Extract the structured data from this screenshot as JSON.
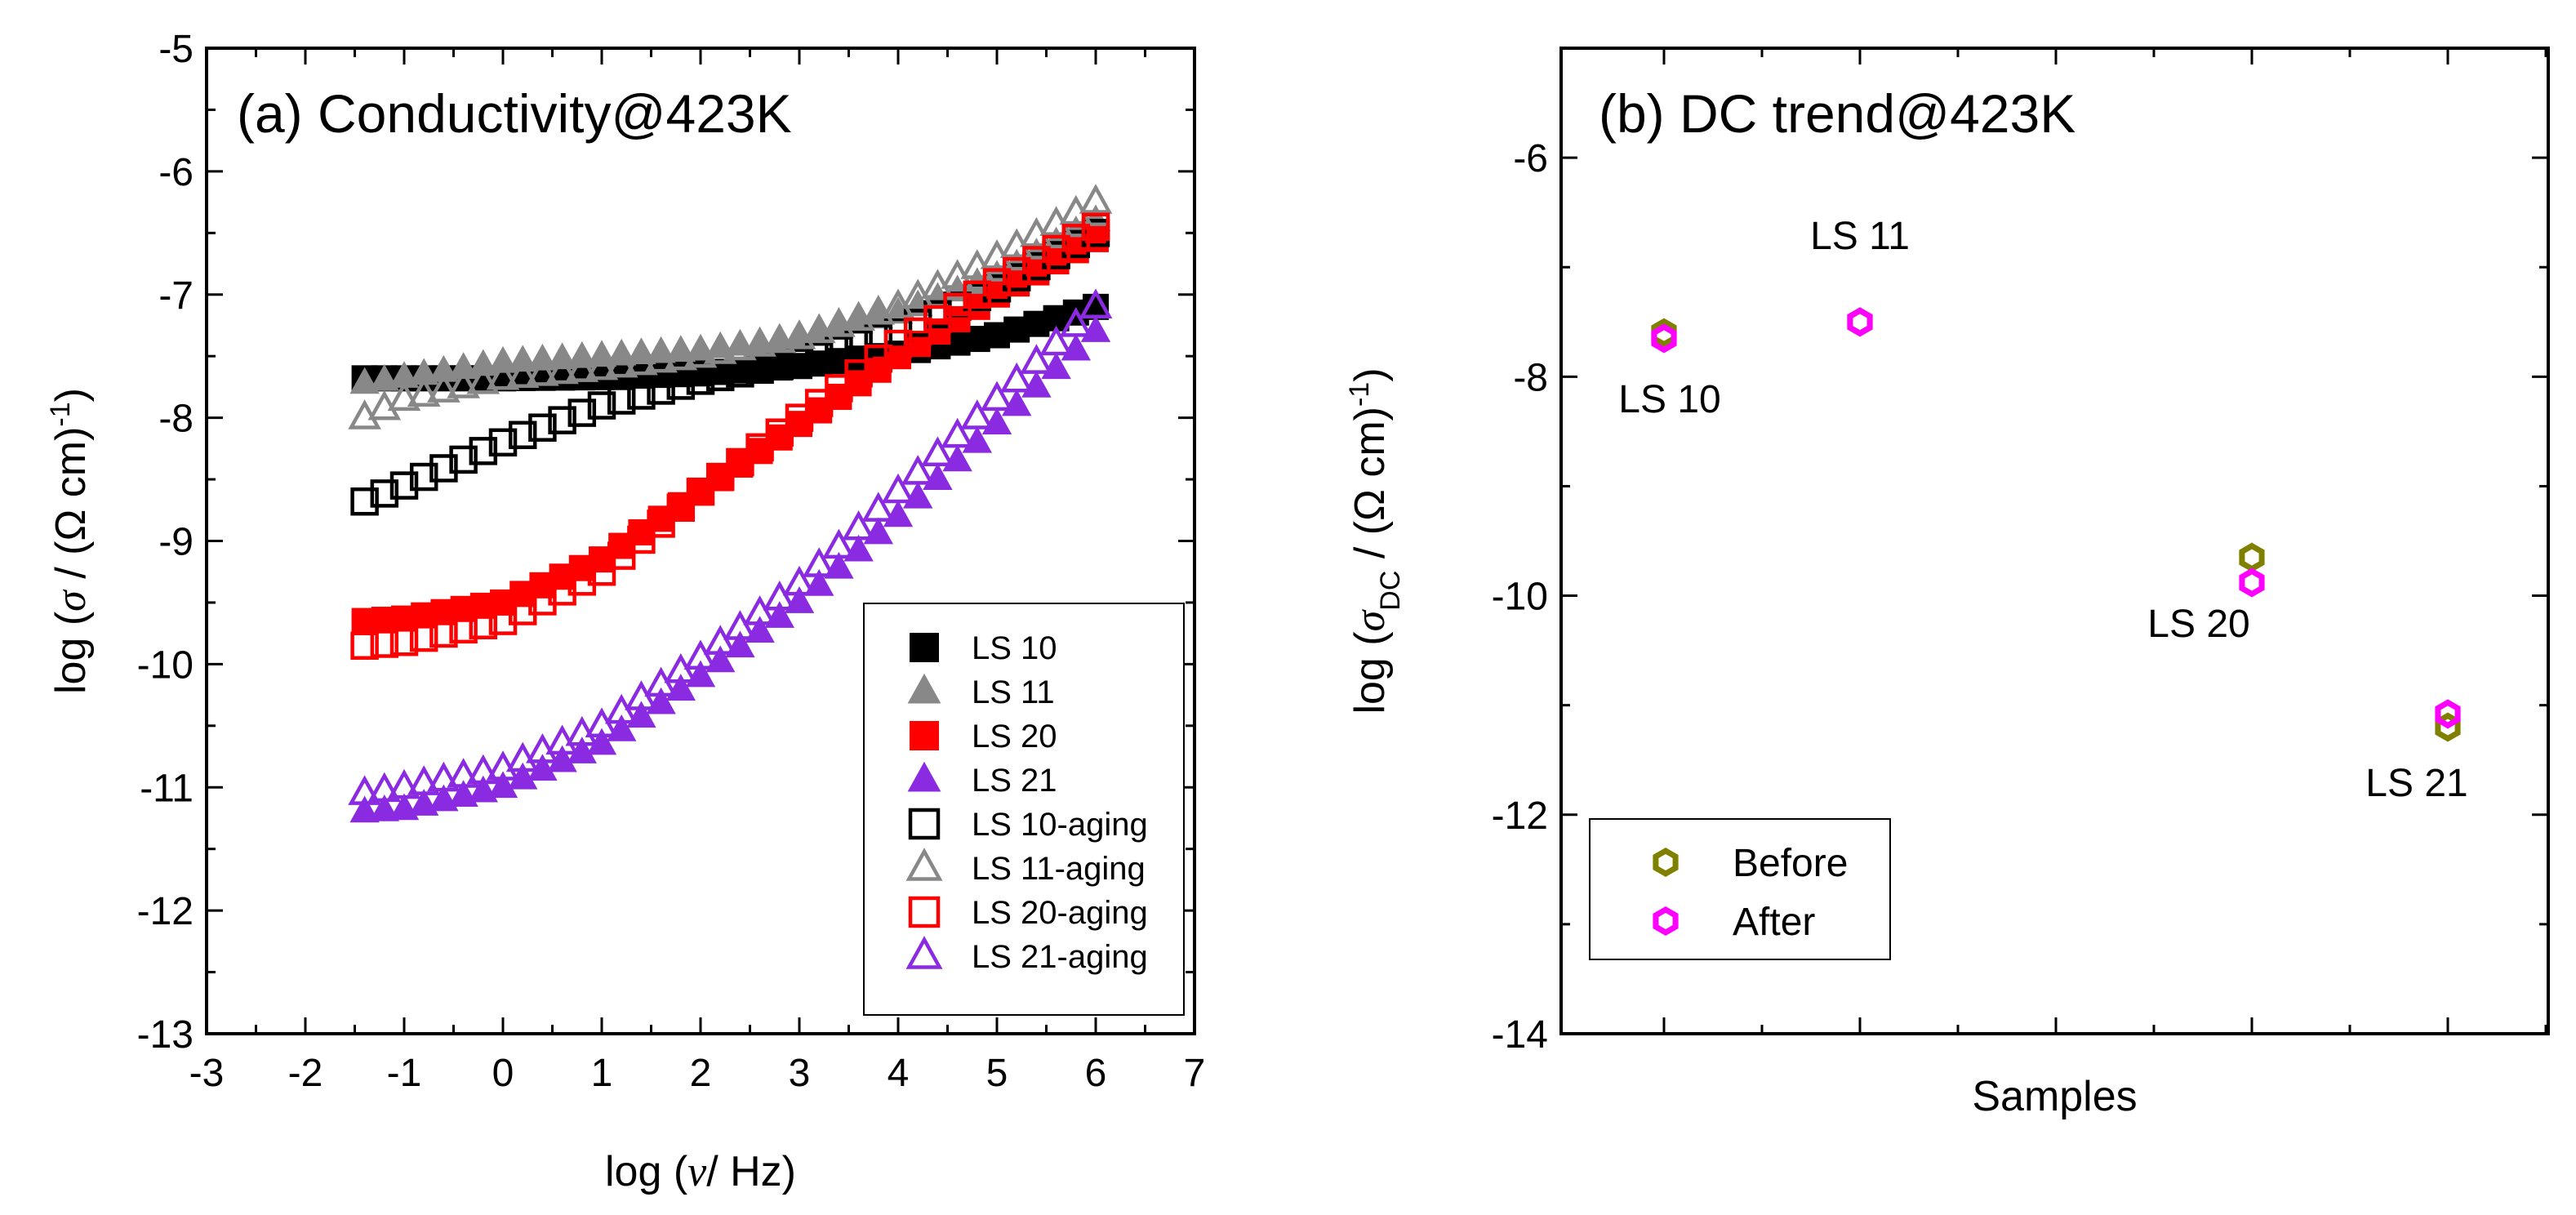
{
  "chart_data": [
    {
      "type": "scatter",
      "title": "(a) Conductivity@423K",
      "xlabel": {
        "pre": "log (",
        "greek": "ν",
        "post": "/ Hz)"
      },
      "ylabel": {
        "pre": "log (",
        "greek": "σ",
        "mid": " / (Ω cm)",
        "sup": "-1",
        "post": ")"
      },
      "xlim": [
        -3,
        7
      ],
      "ylim": [
        -13,
        -5
      ],
      "xticks": [
        "-3",
        "-2",
        "-1",
        "0",
        "1",
        "2",
        "3",
        "4",
        "5",
        "6",
        "7"
      ],
      "yticks": [
        "-13",
        "-12",
        "-11",
        "-10",
        "-9",
        "-8",
        "-7",
        "-6",
        "-5"
      ],
      "legend_position": "bottom-right",
      "series": [
        {
          "name": "LS 10",
          "marker": "square",
          "filled": true,
          "color": "#000000",
          "x": [
            -1.4,
            0,
            1,
            2,
            3,
            4,
            5,
            6
          ],
          "y": [
            -7.68,
            -7.68,
            -7.67,
            -7.64,
            -7.58,
            -7.48,
            -7.33,
            -7.1
          ]
        },
        {
          "name": "LS 11",
          "marker": "triangle",
          "filled": true,
          "color": "#888888",
          "x": [
            -1.4,
            0,
            1,
            2,
            3,
            4,
            5,
            6
          ],
          "y": [
            -7.72,
            -7.55,
            -7.5,
            -7.45,
            -7.35,
            -7.15,
            -6.85,
            -6.4
          ]
        },
        {
          "name": "LS 20",
          "marker": "square",
          "filled": true,
          "color": "#ff0000",
          "x": [
            -1.4,
            -1,
            0,
            1,
            2,
            3,
            4,
            5,
            6
          ],
          "y": [
            -9.65,
            -9.63,
            -9.5,
            -9.15,
            -8.6,
            -8.05,
            -7.5,
            -7.0,
            -6.55
          ]
        },
        {
          "name": "LS 21",
          "marker": "triangle",
          "filled": true,
          "color": "#8a2be2",
          "x": [
            -1.4,
            -1,
            0,
            1,
            2,
            3,
            4,
            5,
            6
          ],
          "y": [
            -11.2,
            -11.18,
            -11.0,
            -10.65,
            -10.1,
            -9.5,
            -8.8,
            -8.05,
            -7.3
          ]
        },
        {
          "name": "LS 10-aging",
          "marker": "square",
          "filled": false,
          "color": "#000000",
          "x": [
            -1.4,
            -1,
            0,
            1,
            2,
            3,
            4,
            5,
            6
          ],
          "y": [
            -8.68,
            -8.55,
            -8.2,
            -7.9,
            -7.7,
            -7.55,
            -7.3,
            -6.95,
            -6.5
          ]
        },
        {
          "name": "LS 11-aging",
          "marker": "triangle",
          "filled": false,
          "color": "#888888",
          "x": [
            -1.4,
            -1,
            0,
            1,
            2,
            3,
            4,
            5,
            6
          ],
          "y": [
            -8.0,
            -7.85,
            -7.68,
            -7.6,
            -7.5,
            -7.35,
            -7.1,
            -6.7,
            -6.25
          ]
        },
        {
          "name": "LS 20-aging",
          "marker": "square",
          "filled": false,
          "color": "#ff0000",
          "x": [
            -1.4,
            -1,
            0,
            1,
            2,
            3,
            4,
            5,
            6
          ],
          "y": [
            -9.85,
            -9.82,
            -9.65,
            -9.25,
            -8.6,
            -8.0,
            -7.4,
            -6.9,
            -6.45
          ]
        },
        {
          "name": "LS 21-aging",
          "marker": "triangle",
          "filled": false,
          "color": "#8a2be2",
          "x": [
            -1.4,
            -1,
            0,
            1,
            2,
            3,
            4,
            5,
            6
          ],
          "y": [
            -11.05,
            -11.0,
            -10.85,
            -10.5,
            -9.95,
            -9.35,
            -8.6,
            -7.85,
            -7.1
          ]
        }
      ]
    },
    {
      "type": "scatter",
      "title": "(b) DC trend@423K",
      "xlabel": "Samples",
      "ylabel": {
        "pre": "log (",
        "greek": "σ",
        "sub": "DC",
        "mid": " / (Ω cm)",
        "sup": "-1",
        "post": ")"
      },
      "ylim": [
        -14,
        -5
      ],
      "yticks": [
        "-14",
        "-12",
        "-10",
        "-8",
        "-6"
      ],
      "categories": [
        "LS 10",
        "LS 11",
        "LS 20",
        "LS 21"
      ],
      "legend_position": "bottom-left",
      "series": [
        {
          "name": "Before",
          "marker": "hexagon",
          "color": "#808000",
          "values": [
            -7.6,
            -7.5,
            -9.65,
            -11.2
          ]
        },
        {
          "name": "After",
          "marker": "hexagon",
          "color": "#ff00ff",
          "values": [
            -7.65,
            -7.5,
            -9.88,
            -11.08
          ]
        }
      ]
    }
  ]
}
